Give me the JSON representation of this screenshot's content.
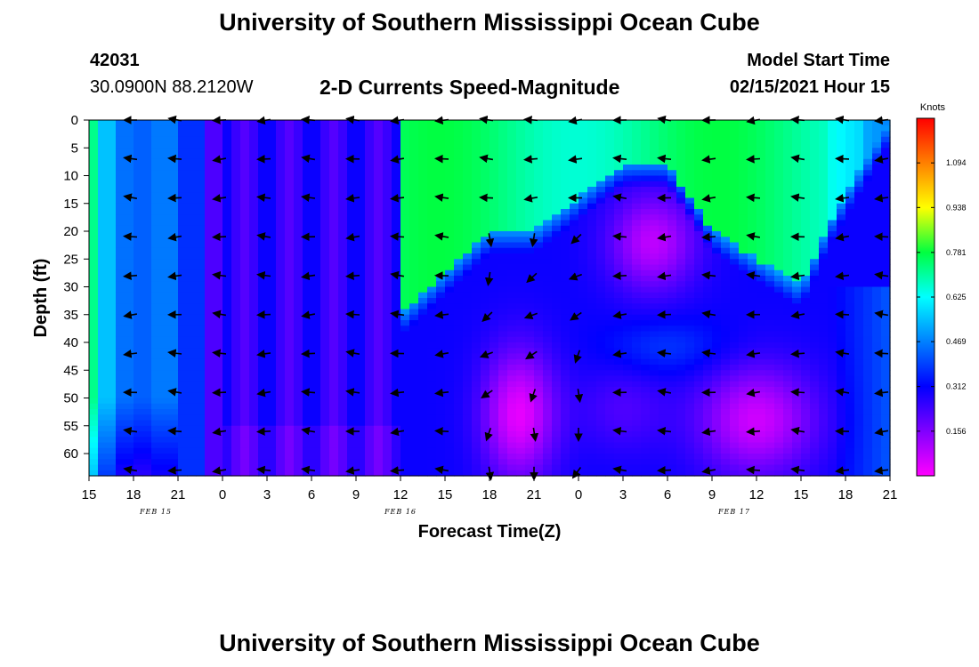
{
  "header": {
    "title": "University of Southern Mississippi Ocean Cube",
    "station_id": "42031",
    "location": "30.0900N 88.2120W",
    "plot_title": "2-D Currents Speed-Magnitude",
    "model_label": "Model Start Time",
    "model_time": "02/15/2021 Hour 15"
  },
  "footer": {
    "title": "University of Southern Mississippi Ocean Cube"
  },
  "chart_data": {
    "type": "heatmap",
    "title": "2-D Currents Speed-Magnitude",
    "xlabel": "Forecast Time(Z)",
    "ylabel": "Depth (ft)",
    "x_hours": [
      0,
      54
    ],
    "x_tick_labels": [
      "15",
      "18",
      "21",
      "0",
      "3",
      "6",
      "9",
      "12",
      "15",
      "18",
      "21",
      "0",
      "3",
      "6",
      "9",
      "12",
      "15",
      "18",
      "21"
    ],
    "date_labels": [
      {
        "label": "FEB 15",
        "hour": 4.5
      },
      {
        "label": "FEB 16",
        "hour": 21
      },
      {
        "label": "FEB 17",
        "hour": 43.5
      }
    ],
    "y_ticks": [
      0,
      5,
      10,
      15,
      20,
      25,
      30,
      35,
      40,
      45,
      50,
      55,
      60
    ],
    "ylim": [
      0,
      64
    ],
    "colorbar": {
      "title": "Knots",
      "tick_values": [
        1.094,
        0.938,
        0.781,
        0.625,
        0.469,
        0.312,
        0.156
      ],
      "tick_labels": [
        "1.094",
        "0.938",
        "0.781",
        "0.625",
        "0.469",
        "0.312",
        "0.156"
      ],
      "range": [
        0,
        1.25
      ],
      "colors": [
        "#ff00ff",
        "#8000ff",
        "#0000ff",
        "#0080ff",
        "#00ffff",
        "#00ff40",
        "#ffff00",
        "#ff8000",
        "#ff0000"
      ]
    },
    "vector_columns_hours": [
      3,
      6,
      9,
      12,
      15,
      18,
      21,
      24,
      27,
      30,
      33,
      36,
      39,
      42,
      45,
      48,
      51,
      54
    ],
    "vector_depths_ft": [
      0,
      7,
      14,
      21,
      28,
      35,
      42,
      49,
      56,
      63
    ],
    "speed_features": [
      {
        "name": "surface-strong-current",
        "value_knots": 0.8
      },
      {
        "name": "deep-weak-core-feb16",
        "value_knots": 0.03
      },
      {
        "name": "deep-weak-core-feb17",
        "value_knots": 0.05
      },
      {
        "name": "mid-depth-moderate-eddy",
        "value_knots": 0.36
      }
    ]
  }
}
